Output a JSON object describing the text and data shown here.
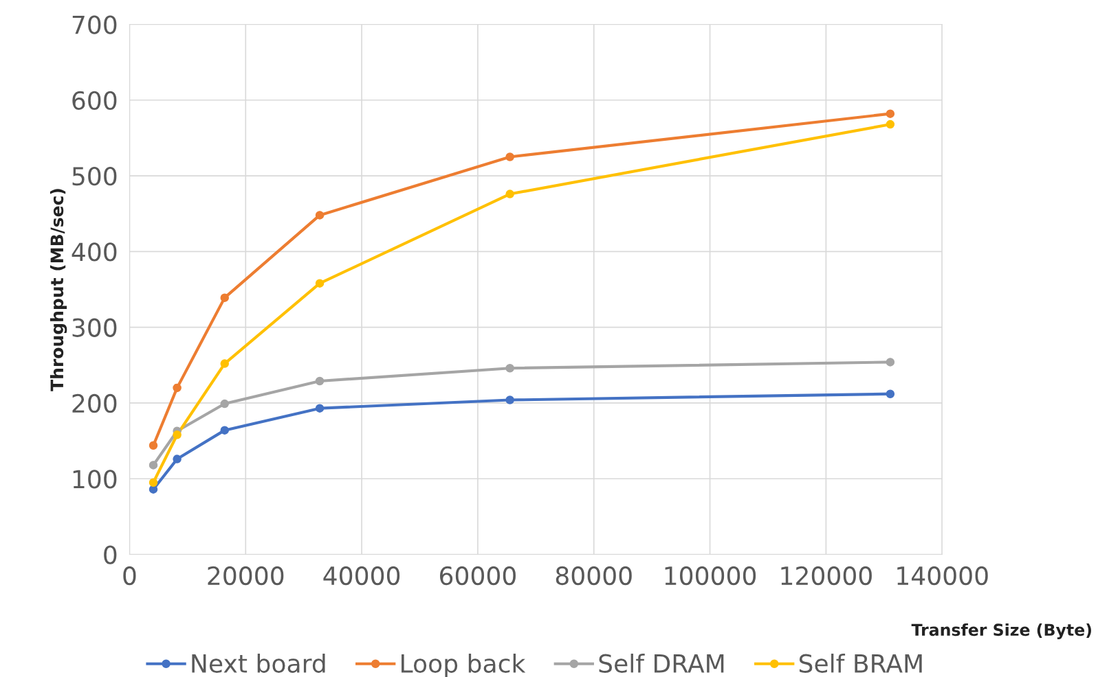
{
  "chart_data": {
    "type": "line",
    "xlabel": "Transfer Size (Byte)",
    "ylabel": "Throughput (MB/sec)",
    "x": [
      4096,
      8192,
      16384,
      32768,
      65536,
      131072
    ],
    "xlim": [
      0,
      140000
    ],
    "xticks": [
      0,
      20000,
      40000,
      60000,
      80000,
      100000,
      120000,
      140000
    ],
    "ylim": [
      0,
      700
    ],
    "yticks": [
      0,
      100,
      200,
      300,
      400,
      500,
      600,
      700
    ],
    "grid": true,
    "legend": "bottom",
    "marker": "circle",
    "line_style": "solid",
    "series": [
      {
        "name": "Next board",
        "color": "#4472c4",
        "values": [
          86,
          126,
          164,
          193,
          204,
          212
        ]
      },
      {
        "name": "Loop back",
        "color": "#ed7d31",
        "values": [
          144,
          220,
          339,
          448,
          525,
          582
        ]
      },
      {
        "name": "Self DRAM",
        "color": "#a5a5a5",
        "values": [
          118,
          163,
          199,
          229,
          246,
          254
        ]
      },
      {
        "name": "Self BRAM",
        "color": "#ffc000",
        "values": [
          95,
          158,
          252,
          358,
          476,
          568
        ]
      }
    ]
  }
}
